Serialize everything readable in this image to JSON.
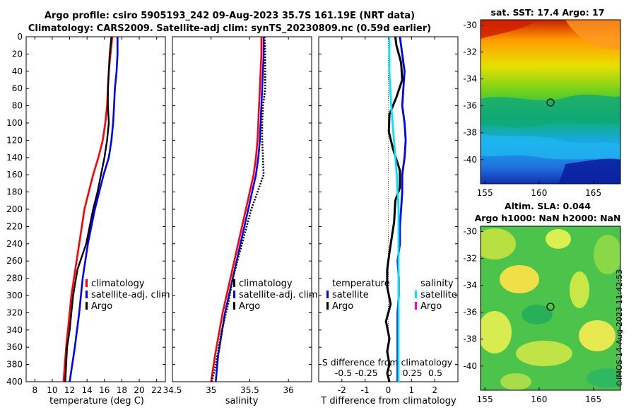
{
  "header": {
    "title_line1": "Argo profile: csiro 5905193_242 09-Aug-2023 35.7S 161.19E (NRT data)",
    "title_line2": "Climatology: CARS2009. Satellite-adj clim: synTS_20230809.nc (0.59d earlier)"
  },
  "maps": {
    "sst_title": "sat. SST: 17.4 Argo: 17",
    "sla_title_line1": "Altim. SLA: 0.044",
    "sla_title_line2": "Argo h1000: NaN h2000: NaN",
    "lat_ticks": [
      -30,
      -32,
      -34,
      -36,
      -38,
      -40
    ],
    "lon_ticks": [
      155,
      160,
      165
    ],
    "lat_range": [
      -29.6,
      -41.8
    ],
    "lon_range": [
      154.6,
      167.5
    ],
    "argo_position": {
      "lat": -35.7,
      "lon": 161.19
    }
  },
  "stamp": "©IMOS 14-Aug-2023 11:42:53",
  "colors": {
    "climatology": "#ff0000",
    "satellite": "#0000ff",
    "argo": "#000000",
    "salinity_satellite": "#00e5ff",
    "salinity_argo": "#ff00cc"
  },
  "chart_data": [
    {
      "type": "line",
      "name": "temperature",
      "xlabel": "temperature (deg C)",
      "ylabel": "",
      "xlim": [
        7,
        23
      ],
      "ylim": [
        0,
        400
      ],
      "xticks": [
        8,
        10,
        12,
        14,
        16,
        18,
        20,
        22
      ],
      "yticks": [
        0,
        20,
        40,
        60,
        80,
        100,
        120,
        140,
        160,
        180,
        200,
        220,
        240,
        260,
        280,
        300,
        320,
        340,
        360,
        380,
        400
      ],
      "legend": [
        "climatology",
        "satellite-adj. clim",
        "Argo"
      ],
      "series": [
        {
          "name": "climatology",
          "x": [
            16.9,
            16.7,
            16.5,
            16.4,
            16.3,
            16.1,
            15.8,
            15.3,
            14.7,
            14.2,
            13.7,
            13.1,
            12.8,
            12.2,
            12.0,
            11.6,
            11.3
          ],
          "depth": [
            0,
            20,
            40,
            60,
            80,
            100,
            120,
            140,
            160,
            180,
            200,
            240,
            260,
            300,
            320,
            360,
            400
          ]
        },
        {
          "name": "satellite-adj. clim",
          "x": [
            17.5,
            17.5,
            17.4,
            17.2,
            17.1,
            17.0,
            16.8,
            16.5,
            15.9,
            15.4,
            14.9,
            14.5,
            14.1,
            13.5,
            13.1,
            12.6,
            12.0
          ],
          "depth": [
            0,
            20,
            40,
            60,
            80,
            100,
            120,
            140,
            160,
            180,
            200,
            220,
            240,
            280,
            320,
            360,
            400
          ]
        },
        {
          "name": "Argo",
          "x": [
            16.8,
            16.6,
            16.5,
            16.4,
            16.4,
            16.5,
            16.3,
            16.0,
            15.6,
            15.2,
            14.7,
            13.9,
            12.9,
            12.4,
            12.2,
            12.0,
            11.7,
            11.6,
            11.5
          ],
          "depth": [
            0,
            20,
            40,
            60,
            80,
            100,
            120,
            140,
            160,
            180,
            200,
            240,
            270,
            300,
            320,
            340,
            360,
            380,
            400
          ]
        }
      ]
    },
    {
      "type": "line",
      "name": "salinity",
      "xlabel": "salinity",
      "ylabel": "",
      "xlim": [
        34.5,
        36.3
      ],
      "ylim": [
        0,
        400
      ],
      "xticks": [
        34.5,
        35,
        35.5,
        36
      ],
      "legend": [
        "climatology",
        "satellite-adj. clim",
        "Argo"
      ],
      "series": [
        {
          "name": "climatology",
          "x": [
            35.65,
            35.65,
            35.64,
            35.63,
            35.62,
            35.61,
            35.6,
            35.58,
            35.55,
            35.5,
            35.45,
            35.35,
            35.25,
            35.15,
            35.05,
            35.0
          ],
          "depth": [
            0,
            20,
            40,
            60,
            80,
            100,
            120,
            140,
            160,
            180,
            200,
            240,
            280,
            320,
            370,
            400
          ]
        },
        {
          "name": "satellite-adj. clim",
          "x": [
            35.68,
            35.68,
            35.67,
            35.66,
            35.65,
            35.64,
            35.63,
            35.61,
            35.58,
            35.53,
            35.48,
            35.38,
            35.28,
            35.18,
            35.09,
            35.06
          ],
          "depth": [
            0,
            20,
            40,
            60,
            80,
            100,
            120,
            140,
            160,
            180,
            200,
            240,
            280,
            320,
            370,
            400
          ]
        },
        {
          "name": "Argo",
          "x": [
            35.69,
            35.7,
            35.7,
            35.7,
            35.67,
            35.66,
            35.66,
            35.67,
            35.68,
            35.6,
            35.52,
            35.4,
            35.28,
            35.22,
            35.14,
            35.06,
            35.01
          ],
          "depth": [
            0,
            20,
            40,
            60,
            80,
            100,
            120,
            140,
            160,
            180,
            200,
            240,
            280,
            310,
            340,
            380,
            400
          ]
        }
      ]
    },
    {
      "type": "line",
      "name": "difference",
      "xlabel": "T difference from climatology",
      "x2label": "S difference from climatology",
      "xlim": [
        -3,
        3
      ],
      "ylim": [
        0,
        400
      ],
      "xticks": [
        -2,
        -1,
        0,
        1,
        2
      ],
      "x2ticks": [
        -0.5,
        -0.25,
        0,
        0.25,
        0.5
      ],
      "legend_temperature_heading": "temperature",
      "legend_salinity_heading": "salinity",
      "legend_temperature": [
        "satellite",
        "Argo"
      ],
      "legend_salinity": [
        "satellite",
        "Argo"
      ],
      "series": [
        {
          "name": "temperature satellite",
          "x": [
            0.5,
            0.6,
            0.7,
            0.65,
            0.6,
            0.7,
            0.75,
            0.7,
            0.6,
            0.6,
            0.55,
            0.5,
            0.5,
            0.4,
            0.45,
            0.45,
            0.4,
            0.4,
            0.4,
            0.4
          ],
          "depth": [
            0,
            20,
            40,
            60,
            80,
            100,
            120,
            140,
            160,
            180,
            200,
            220,
            240,
            260,
            280,
            300,
            320,
            340,
            360,
            400
          ]
        },
        {
          "name": "temperature Argo",
          "x": [
            0.3,
            0.35,
            0.55,
            0.6,
            0.35,
            0.05,
            0.02,
            0.2,
            0.5,
            0.5,
            0.3,
            0.25,
            0.05,
            -0.05,
            -0.05,
            0.1,
            -0.1,
            0.05,
            -0.05,
            0.05,
            -0.05,
            0.05
          ],
          "depth": [
            0,
            10,
            30,
            50,
            70,
            90,
            110,
            130,
            155,
            175,
            190,
            215,
            250,
            270,
            290,
            310,
            330,
            350,
            365,
            380,
            390,
            400
          ]
        },
        {
          "name": "salinity satellite",
          "x": [
            0.0,
            0.0,
            0.02,
            0.05,
            0.08,
            0.1,
            0.1,
            0.1
          ],
          "depth": [
            0,
            40,
            80,
            120,
            160,
            200,
            300,
            400
          ]
        }
      ]
    }
  ]
}
